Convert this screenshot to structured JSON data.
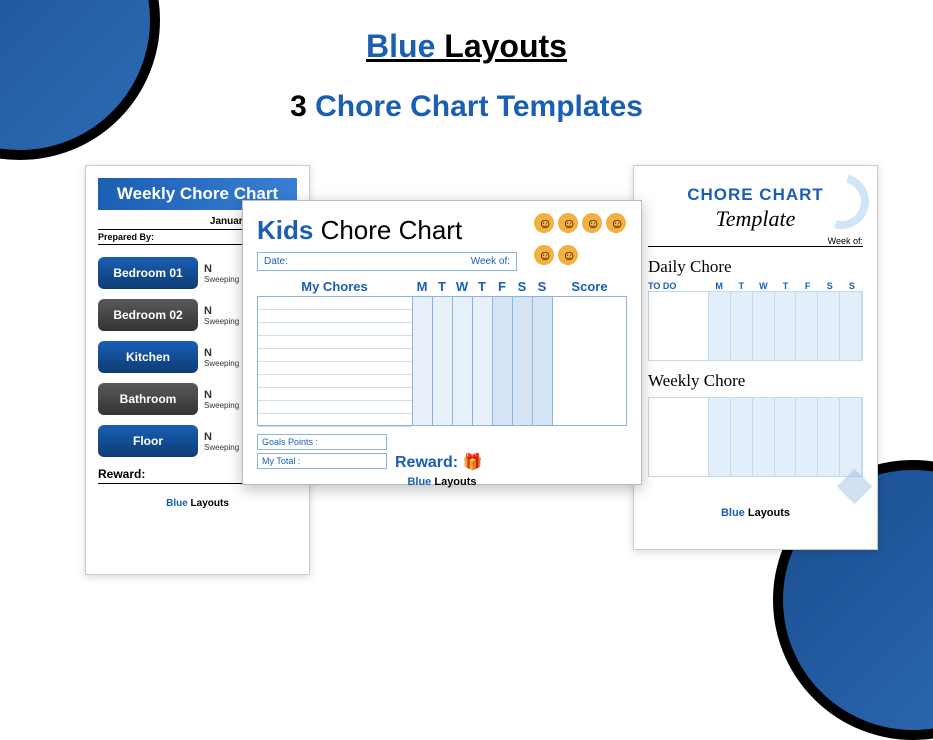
{
  "logo": {
    "part1": "Blue",
    "part2": " Layouts"
  },
  "headline": {
    "count": "3",
    "rest": " Chore Chart Templates"
  },
  "tpl1": {
    "title": "Weekly Chore Chart",
    "subtitle": "January - Week 01",
    "prepared_by": "Prepared By:",
    "rooms": [
      {
        "label": "Bedroom 01",
        "style": "pill-blue",
        "task_n": "N",
        "task": "Sweeping ★ M"
      },
      {
        "label": "Bedroom 02",
        "style": "pill-gray",
        "task_n": "N",
        "task": "Sweeping ★ M"
      },
      {
        "label": "Kitchen",
        "style": "pill-blue",
        "task_n": "N",
        "task": "Sweeping ★ M"
      },
      {
        "label": "Bathroom",
        "style": "pill-gray",
        "task_n": "N",
        "task": "Sweeping ★ M"
      },
      {
        "label": "Floor",
        "style": "pill-blue",
        "task_n": "N",
        "task": "Sweeping ★ M"
      }
    ],
    "reward": "Reward:",
    "footer": {
      "blue": "Blue",
      "rest": " Layouts"
    }
  },
  "tpl2": {
    "title_kids": "Kids",
    "title_rest": " Chore Chart",
    "date_label": "Date:",
    "weekof_label": "Week of:",
    "my_chores": "My Chores",
    "days": [
      "M",
      "T",
      "W",
      "T",
      "F",
      "S",
      "S"
    ],
    "score": "Score",
    "day_alt_bg": [
      false,
      false,
      false,
      false,
      true,
      true,
      true
    ],
    "grid_rows": 10,
    "goals": "Goals Points :",
    "mytotal": "My Total :",
    "reward": "Reward:",
    "gift": "🎁",
    "footer": {
      "blue": "Blue",
      "rest": " Layouts"
    }
  },
  "tpl3": {
    "title_cc": "CHORE CHART",
    "title_tpl": " Template",
    "weekof": "Week of:",
    "daily": "Daily Chore",
    "todo": "TO DO",
    "days": [
      "M",
      "T",
      "W",
      "T",
      "F",
      "S",
      "S"
    ],
    "weekly": "Weekly Chore",
    "footer": {
      "blue": "Blue",
      "rest": " Layouts"
    }
  },
  "colors": {
    "brand_blue": "#1a5fb4",
    "light_blue": "#e3eefb",
    "border_blue": "#8db4e0"
  }
}
